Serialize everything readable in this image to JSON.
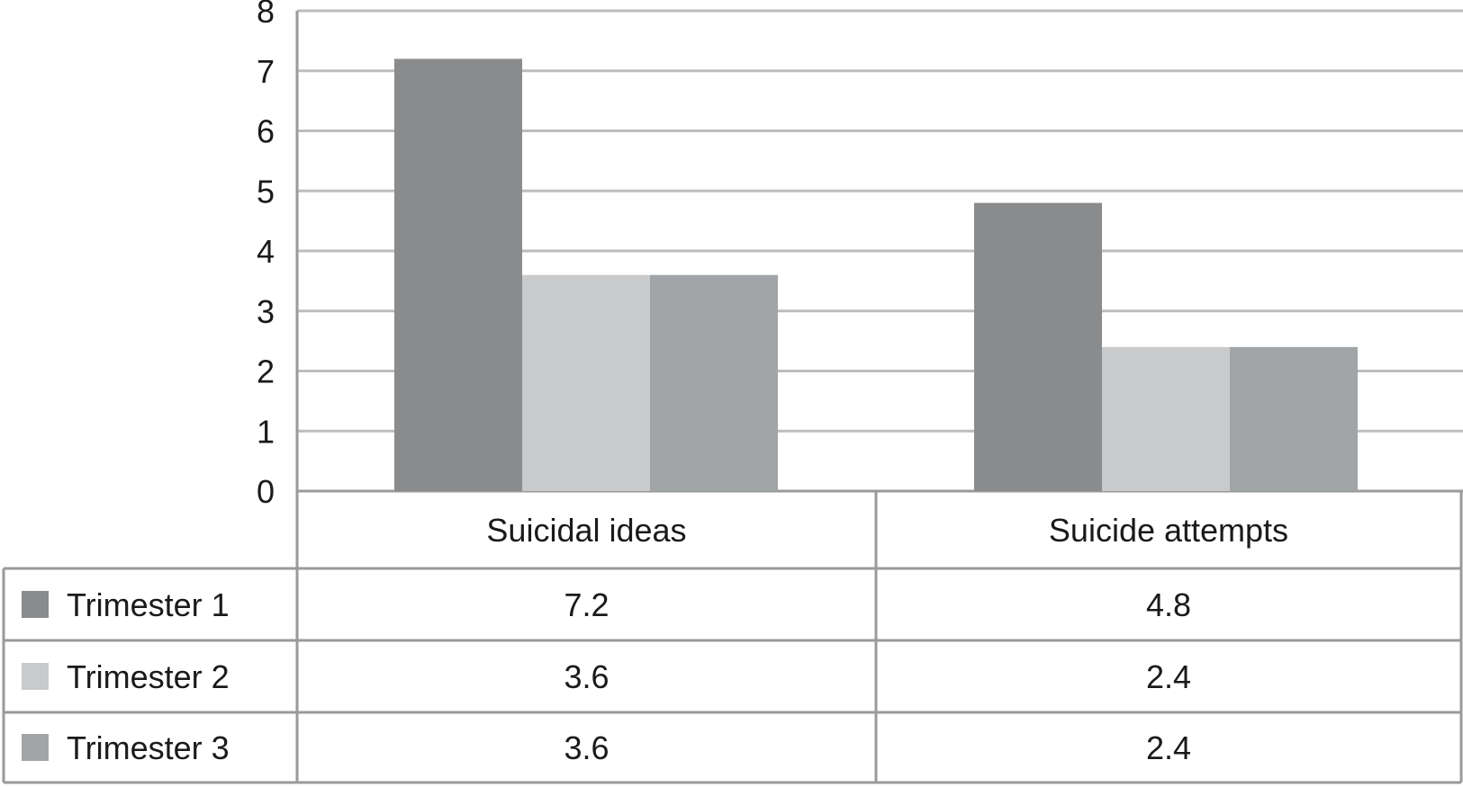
{
  "chart_data": {
    "type": "bar",
    "title": "",
    "xlabel": "",
    "ylabel": "",
    "ylim": [
      0,
      8
    ],
    "yticks": [
      "0",
      "1",
      "2",
      "3",
      "4",
      "5",
      "6",
      "7",
      "8"
    ],
    "grid": true,
    "legend": "data-table",
    "categories": [
      "Suicidal ideas",
      "Suicide attempts"
    ],
    "series": [
      {
        "name": "Trimester 1",
        "values": [
          7.2,
          4.8
        ],
        "value_labels": [
          "7.2",
          "4.8"
        ],
        "color": "#8a8b8d"
      },
      {
        "name": "Trimester 2",
        "values": [
          3.6,
          2.4
        ],
        "value_labels": [
          "3.6",
          "2.4"
        ],
        "color": "#c9cacc"
      },
      {
        "name": "Trimester 3",
        "values": [
          3.6,
          2.4
        ],
        "value_labels": [
          "3.6",
          "2.4"
        ],
        "color": "#a2a5a8"
      }
    ]
  },
  "colors": {
    "gridline": "#bdbdbd",
    "table_border": "#9a9a9a",
    "text": "#1a1a1a"
  }
}
